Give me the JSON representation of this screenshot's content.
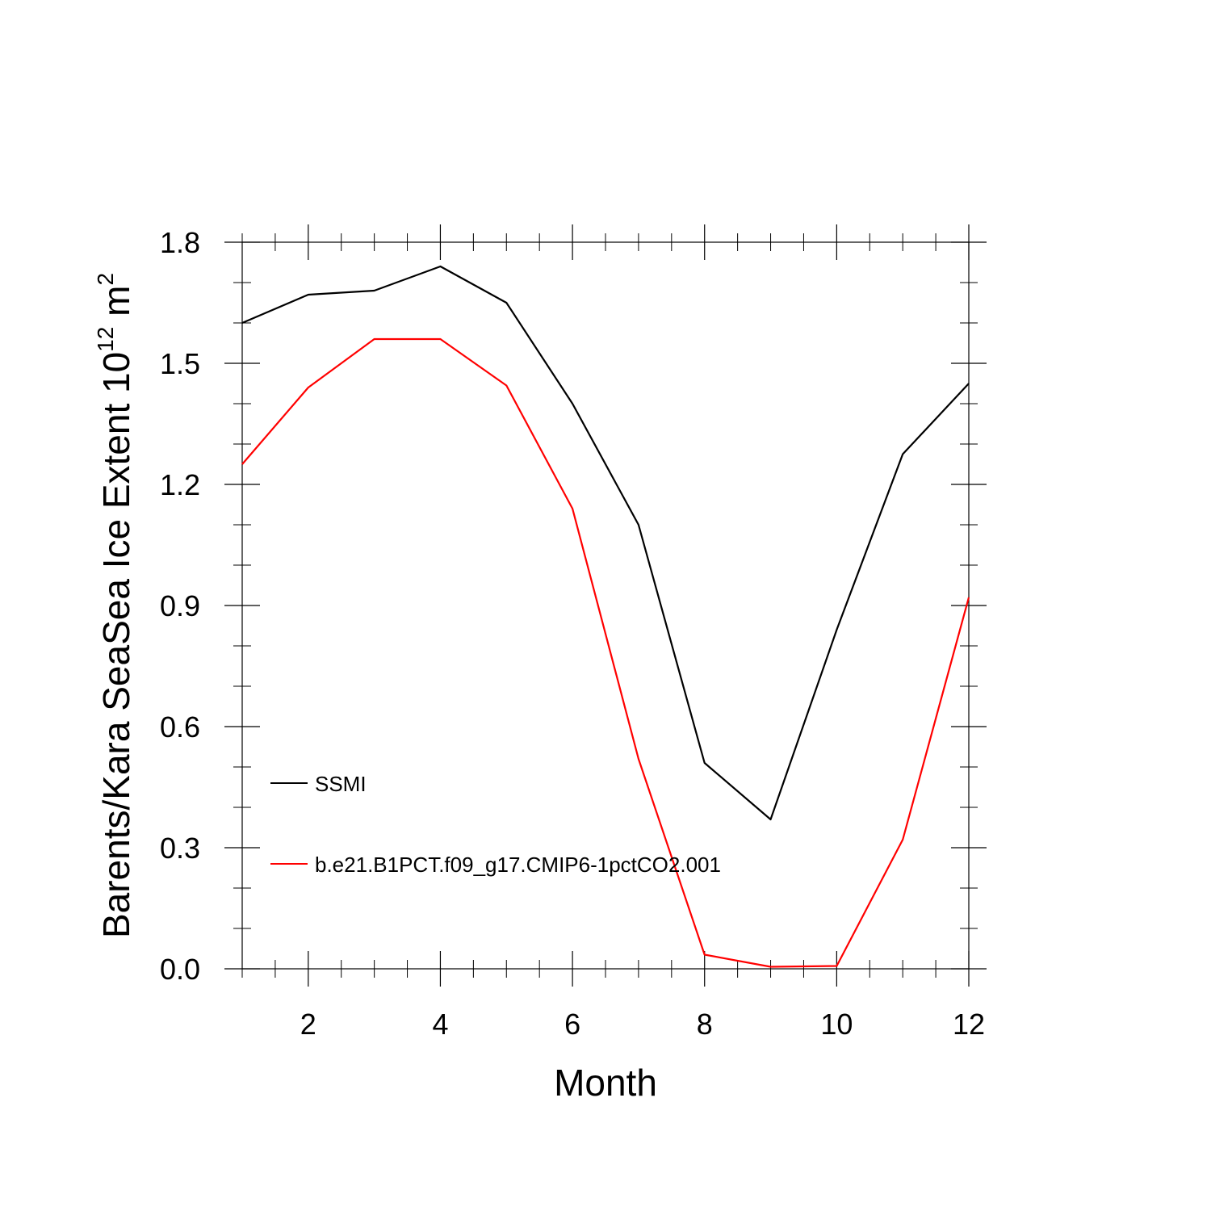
{
  "chart_data": {
    "type": "line",
    "xlabel": "Month",
    "ylabel": "Barents/Kara SeaSea Ice Extent 10",
    "ylabel_sup": "12",
    "ylabel_unit": " m",
    "ylabel_unit_sup": "2",
    "xlim": [
      1,
      12
    ],
    "ylim": [
      0.0,
      1.8
    ],
    "x_ticks": [
      2,
      4,
      6,
      8,
      10,
      12
    ],
    "x_tick_labels": [
      "2",
      "4",
      "6",
      "8",
      "10",
      "12"
    ],
    "y_ticks": [
      0.0,
      0.3,
      0.6,
      0.9,
      1.2,
      1.5,
      1.8
    ],
    "y_tick_labels": [
      "0.0",
      "0.3",
      "0.6",
      "0.9",
      "1.2",
      "1.5",
      "1.8"
    ],
    "grid": false,
    "legend_position": "inside-lower-left",
    "x": [
      1,
      2,
      3,
      4,
      5,
      6,
      7,
      8,
      9,
      10,
      11,
      12
    ],
    "series": [
      {
        "name": "SSMI",
        "color": "#000000",
        "values": [
          1.6,
          1.67,
          1.68,
          1.74,
          1.65,
          1.4,
          1.1,
          0.51,
          0.37,
          0.84,
          1.275,
          1.45
        ]
      },
      {
        "name": "b.e21.B1PCT.f09_g17.CMIP6-1pctCO2.001",
        "color": "#ff0000",
        "values": [
          1.25,
          1.44,
          1.56,
          1.56,
          1.445,
          1.14,
          0.52,
          0.035,
          0.005,
          0.007,
          0.32,
          0.92
        ]
      }
    ]
  }
}
